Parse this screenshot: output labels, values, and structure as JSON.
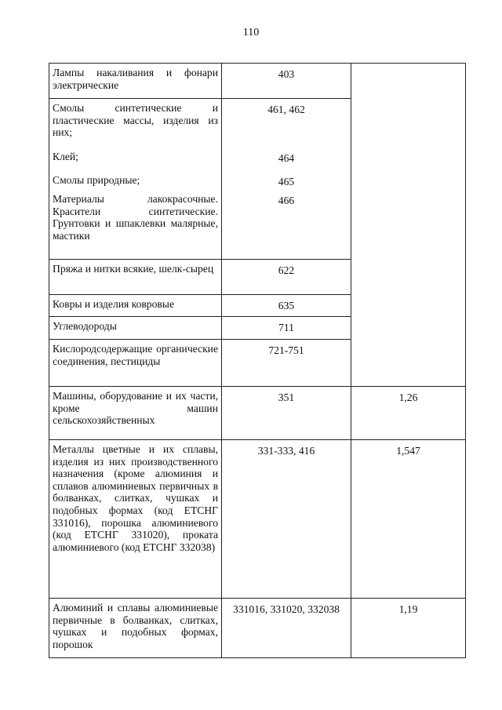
{
  "page_number": "110",
  "rows": [
    {
      "items": [
        {
          "name": "Лампы накаливания и фонари электрические",
          "code": "403"
        }
      ],
      "coef": ""
    },
    {
      "items": [
        {
          "name": "Смолы синтетические и пластические массы, изделия из них;",
          "code": "461, 462"
        },
        {
          "name": "Клей;",
          "code": "464"
        },
        {
          "name": "Смолы природные;",
          "code": "465"
        },
        {
          "name": "Материалы лакокрасочные. Красители синтетические. Грунтовки и шпаклевки малярные, мастики",
          "code": "466"
        }
      ]
    },
    {
      "items": [
        {
          "name": "Пряжа и нитки всякие, шелк-сырец",
          "code": "622"
        }
      ]
    },
    {
      "items": [
        {
          "name": "Ковры и изделия ковровые",
          "code": "635"
        }
      ]
    },
    {
      "items": [
        {
          "name": "Углеводороды",
          "code": "711"
        }
      ]
    },
    {
      "items": [
        {
          "name": "Кислородсодержащие органические соединения, пестициды",
          "code": "721-751"
        }
      ]
    },
    {
      "items": [
        {
          "name": "Машины, оборудование и их части, кроме машин сельскохозяйственных",
          "code": "351"
        }
      ],
      "coef": "1,26"
    },
    {
      "items": [
        {
          "name": "Металлы цветные и их сплавы, изделия из них производственного назначения (кроме алюминия и сплавов алюминиевых первичных в болванках, слитках, чушках и подобных формах (код ЕТСНГ 331016), порошка алюминиевого (код ЕТСНГ 331020), проката алюминиевого (код ЕТСНГ 332038)",
          "code": "331-333, 416"
        }
      ],
      "coef": "1,547"
    },
    {
      "items": [
        {
          "name": "Алюминий и сплавы алюминиевые первичные в болванках, слитках, чушках и подобных формах, порошок",
          "code": "331016, 331020, 332038"
        }
      ],
      "coef": "1,19"
    }
  ]
}
